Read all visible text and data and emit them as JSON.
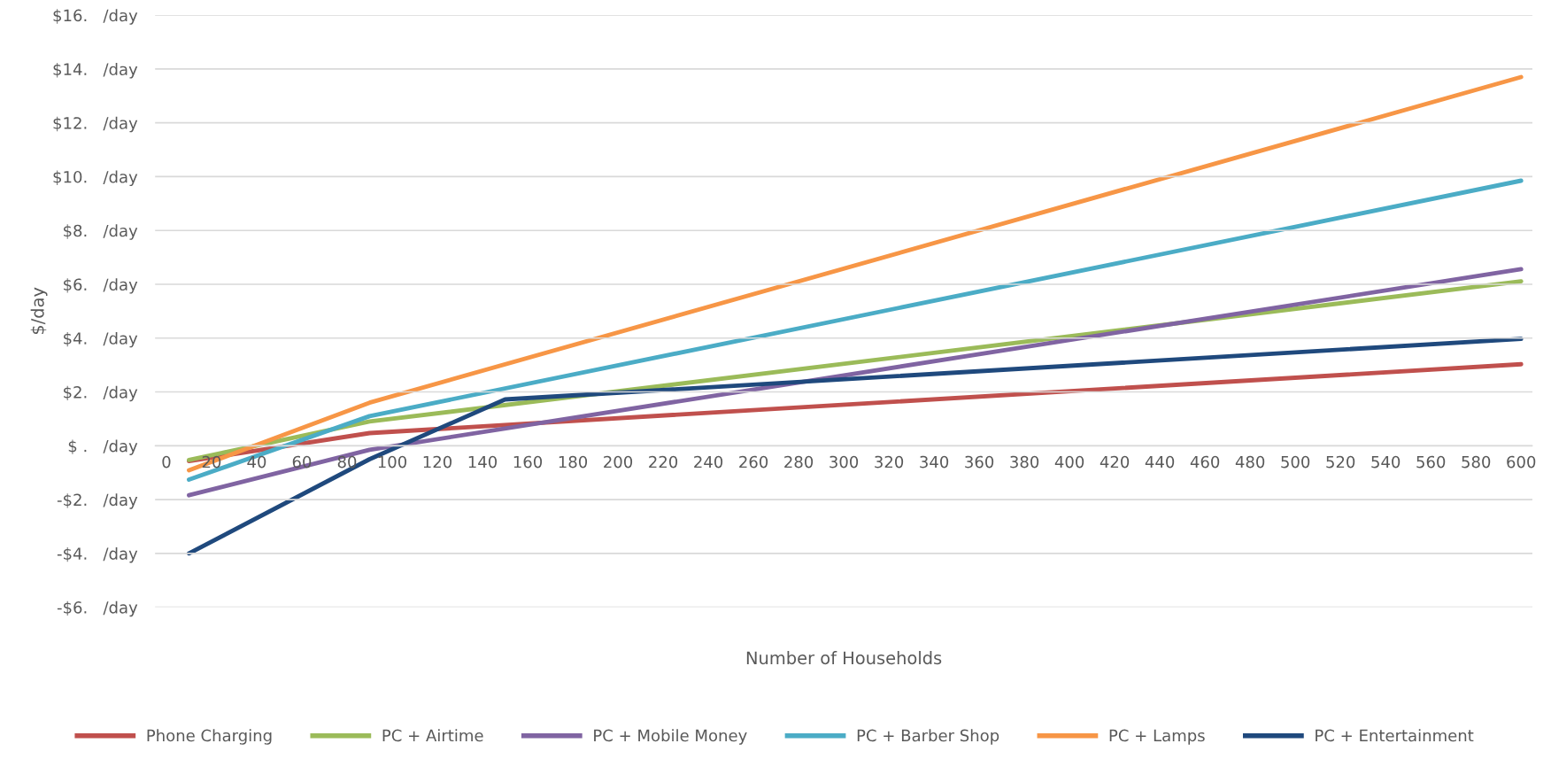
{
  "chart_data": {
    "type": "line",
    "xlabel": "Number of Households",
    "ylabel": "$/day",
    "xlim": [
      -5,
      605
    ],
    "xticks": [
      0,
      20,
      40,
      60,
      80,
      100,
      120,
      140,
      160,
      180,
      200,
      220,
      240,
      260,
      280,
      300,
      320,
      340,
      360,
      380,
      400,
      420,
      440,
      460,
      480,
      500,
      520,
      540,
      560,
      580,
      600
    ],
    "ylim": [
      -6,
      16
    ],
    "yticks": [
      {
        "value": -6,
        "label": "-$6.   /day"
      },
      {
        "value": -4,
        "label": "-$4.   /day"
      },
      {
        "value": -2,
        "label": "-$2.   /day"
      },
      {
        "value": 0,
        "label": "$ .   /day"
      },
      {
        "value": 2,
        "label": "$2.   /day"
      },
      {
        "value": 4,
        "label": "$4.   /day"
      },
      {
        "value": 6,
        "label": "$6.   /day"
      },
      {
        "value": 8,
        "label": "$8.   /day"
      },
      {
        "value": 10,
        "label": "$10.   /day"
      },
      {
        "value": 12,
        "label": "$12.   /day"
      },
      {
        "value": 14,
        "label": "$14.   /day"
      },
      {
        "value": 16,
        "label": "$16.   /day"
      }
    ],
    "grid": "y",
    "legend": "bottom",
    "marker": "none",
    "line_style": "solid",
    "series": [
      {
        "name": "Phone Charging",
        "color": "#c0504d",
        "x": [
          10,
          90,
          600
        ],
        "values": [
          -0.57,
          0.47,
          3.03
        ]
      },
      {
        "name": "PC + Airtime",
        "color": "#9bbb59",
        "x": [
          10,
          90,
          600
        ],
        "values": [
          -0.53,
          0.9,
          6.11
        ]
      },
      {
        "name": "PC + Mobile Money",
        "color": "#8064a2",
        "x": [
          10,
          90,
          600
        ],
        "values": [
          -1.84,
          -0.15,
          6.56
        ]
      },
      {
        "name": "PC + Barber Shop",
        "color": "#4bacc6",
        "x": [
          10,
          90,
          600
        ],
        "values": [
          -1.26,
          1.1,
          9.85
        ]
      },
      {
        "name": "PC + Lamps",
        "color": "#f79646",
        "x": [
          10,
          90,
          600
        ],
        "values": [
          -0.91,
          1.6,
          13.7
        ]
      },
      {
        "name": "PC + Entertainment",
        "color": "#1f497d",
        "x": [
          10,
          90,
          150,
          600
        ],
        "values": [
          -4.0,
          -0.5,
          1.72,
          3.97
        ]
      }
    ]
  }
}
